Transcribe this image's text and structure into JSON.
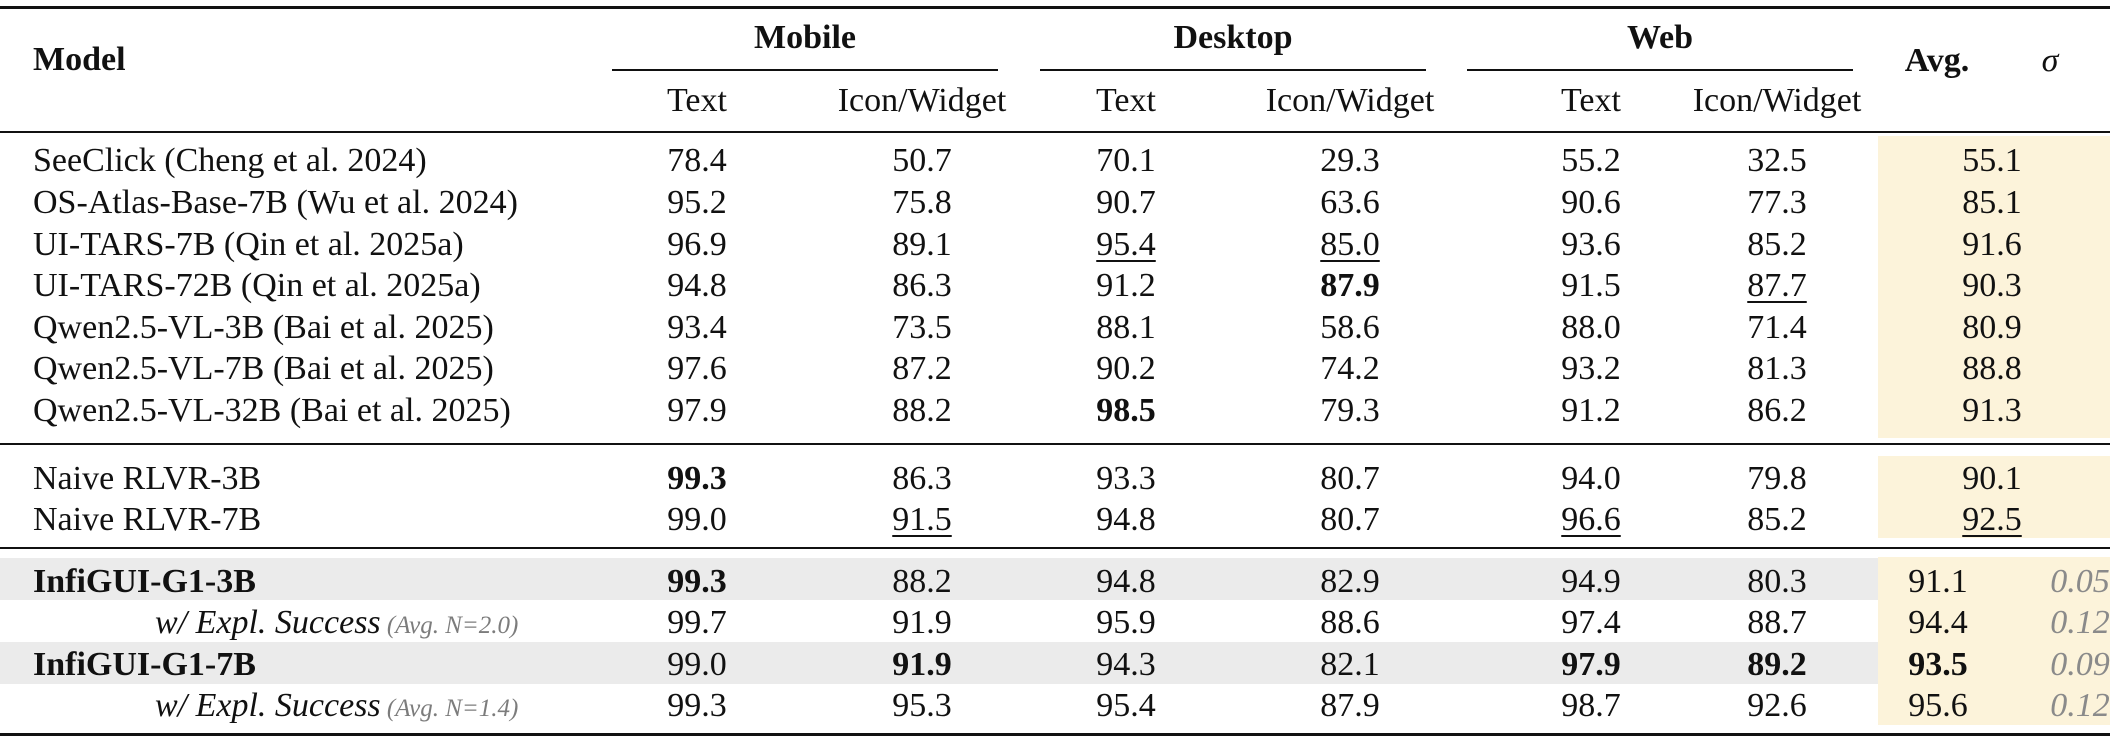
{
  "header": {
    "model": "Model",
    "groups": [
      "Mobile",
      "Desktop",
      "Web"
    ],
    "subcols": [
      "Text",
      "Icon/Widget",
      "Text",
      "Icon/Widget",
      "Text",
      "Icon/Widget"
    ],
    "avg": "Avg.",
    "sigma": "σ"
  },
  "rows": [
    {
      "model": "SeeClick (Cheng et al. 2024)",
      "v": [
        "78.4",
        "50.7",
        "70.1",
        "29.3",
        "55.2",
        "32.5"
      ],
      "avg": "55.1",
      "sigma": ""
    },
    {
      "model": "OS-Atlas-Base-7B (Wu et al. 2024)",
      "v": [
        "95.2",
        "75.8",
        "90.7",
        "63.6",
        "90.6",
        "77.3"
      ],
      "avg": "85.1",
      "sigma": ""
    },
    {
      "model": "UI-TARS-7B (Qin et al. 2025a)",
      "v": [
        "96.9",
        "89.1",
        "95.4",
        "85.0",
        "93.6",
        "85.2"
      ],
      "avg": "91.6",
      "sigma": ""
    },
    {
      "model": "UI-TARS-72B (Qin et al. 2025a)",
      "v": [
        "94.8",
        "86.3",
        "91.2",
        "87.9",
        "91.5",
        "87.7"
      ],
      "avg": "90.3",
      "sigma": ""
    },
    {
      "model": "Qwen2.5-VL-3B (Bai et al. 2025)",
      "v": [
        "93.4",
        "73.5",
        "88.1",
        "58.6",
        "88.0",
        "71.4"
      ],
      "avg": "80.9",
      "sigma": ""
    },
    {
      "model": "Qwen2.5-VL-7B (Bai et al. 2025)",
      "v": [
        "97.6",
        "87.2",
        "90.2",
        "74.2",
        "93.2",
        "81.3"
      ],
      "avg": "88.8",
      "sigma": ""
    },
    {
      "model": "Qwen2.5-VL-32B (Bai et al. 2025)",
      "v": [
        "97.9",
        "88.2",
        "98.5",
        "79.3",
        "91.2",
        "86.2"
      ],
      "avg": "91.3",
      "sigma": ""
    },
    {
      "model": "Naive RLVR-3B",
      "v": [
        "99.3",
        "86.3",
        "93.3",
        "80.7",
        "94.0",
        "79.8"
      ],
      "avg": "90.1",
      "sigma": ""
    },
    {
      "model": "Naive RLVR-7B",
      "v": [
        "99.0",
        "91.5",
        "94.8",
        "80.7",
        "96.6",
        "85.2"
      ],
      "avg": "92.5",
      "sigma": ""
    },
    {
      "model": "InfiGUI-G1-3B",
      "v": [
        "99.3",
        "88.2",
        "94.8",
        "82.9",
        "94.9",
        "80.3"
      ],
      "avg": "91.1",
      "sigma": "0.05"
    },
    {
      "model": "w/ Expl. Success",
      "note": "(Avg. N=2.0)",
      "v": [
        "99.7",
        "91.9",
        "95.9",
        "88.6",
        "97.4",
        "88.7"
      ],
      "avg": "94.4",
      "sigma": "0.12"
    },
    {
      "model": "InfiGUI-G1-7B",
      "v": [
        "99.0",
        "91.9",
        "94.3",
        "82.1",
        "97.9",
        "89.2"
      ],
      "avg": "93.5",
      "sigma": "0.09"
    },
    {
      "model": "w/ Expl. Success",
      "note": "(Avg. N=1.4)",
      "v": [
        "99.3",
        "95.3",
        "95.4",
        "87.9",
        "98.7",
        "92.6"
      ],
      "avg": "95.6",
      "sigma": "0.12"
    }
  ]
}
